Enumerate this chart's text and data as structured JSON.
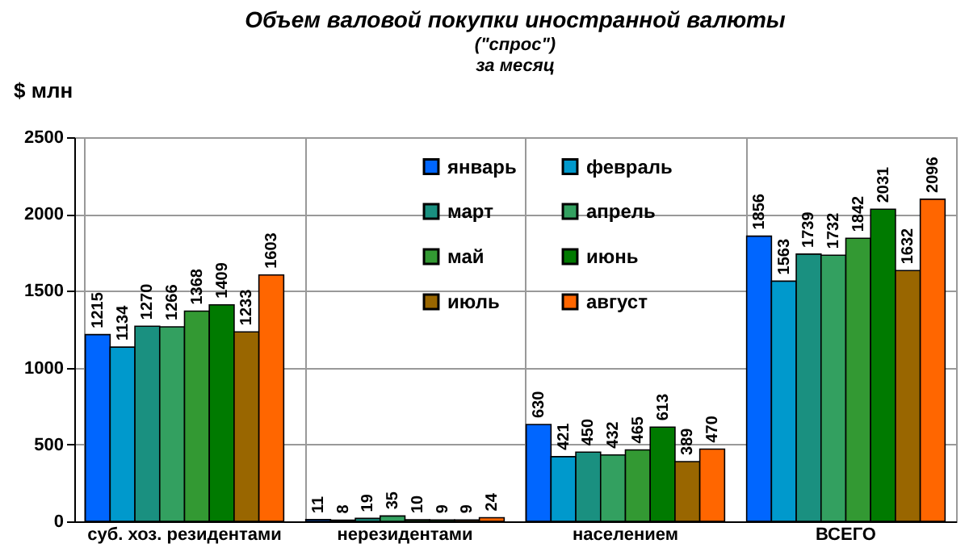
{
  "chart_data": {
    "type": "bar",
    "title": "Объем валовой покупки иностранной валюты",
    "subtitle": "(\"спрос\")\nза месяц",
    "ylabel": "$ млн",
    "categories": [
      "суб. хоз. резидентами",
      "нерезидентами",
      "населением",
      "ВСЕГО"
    ],
    "series": [
      {
        "name": "январь",
        "color": "#0066ff",
        "values": [
          1215,
          11,
          630,
          1856
        ]
      },
      {
        "name": "февраль",
        "color": "#0099cc",
        "values": [
          1134,
          8,
          421,
          1563
        ]
      },
      {
        "name": "март",
        "color": "#1a9080",
        "values": [
          1270,
          19,
          450,
          1739
        ]
      },
      {
        "name": "апрель",
        "color": "#33a060",
        "values": [
          1266,
          35,
          432,
          1732
        ]
      },
      {
        "name": "май",
        "color": "#339933",
        "values": [
          1368,
          10,
          465,
          1842
        ]
      },
      {
        "name": "июнь",
        "color": "#007a00",
        "values": [
          1409,
          9,
          613,
          2031
        ]
      },
      {
        "name": "июль",
        "color": "#996600",
        "values": [
          1233,
          9,
          389,
          1632
        ]
      },
      {
        "name": "август",
        "color": "#ff6600",
        "values": [
          1603,
          24,
          470,
          2096
        ]
      }
    ],
    "ylim": [
      0,
      2500
    ],
    "yticks": [
      0,
      500,
      1000,
      1500,
      2000,
      2500
    ],
    "grid": true,
    "legend": "top",
    "data_labels": true
  }
}
